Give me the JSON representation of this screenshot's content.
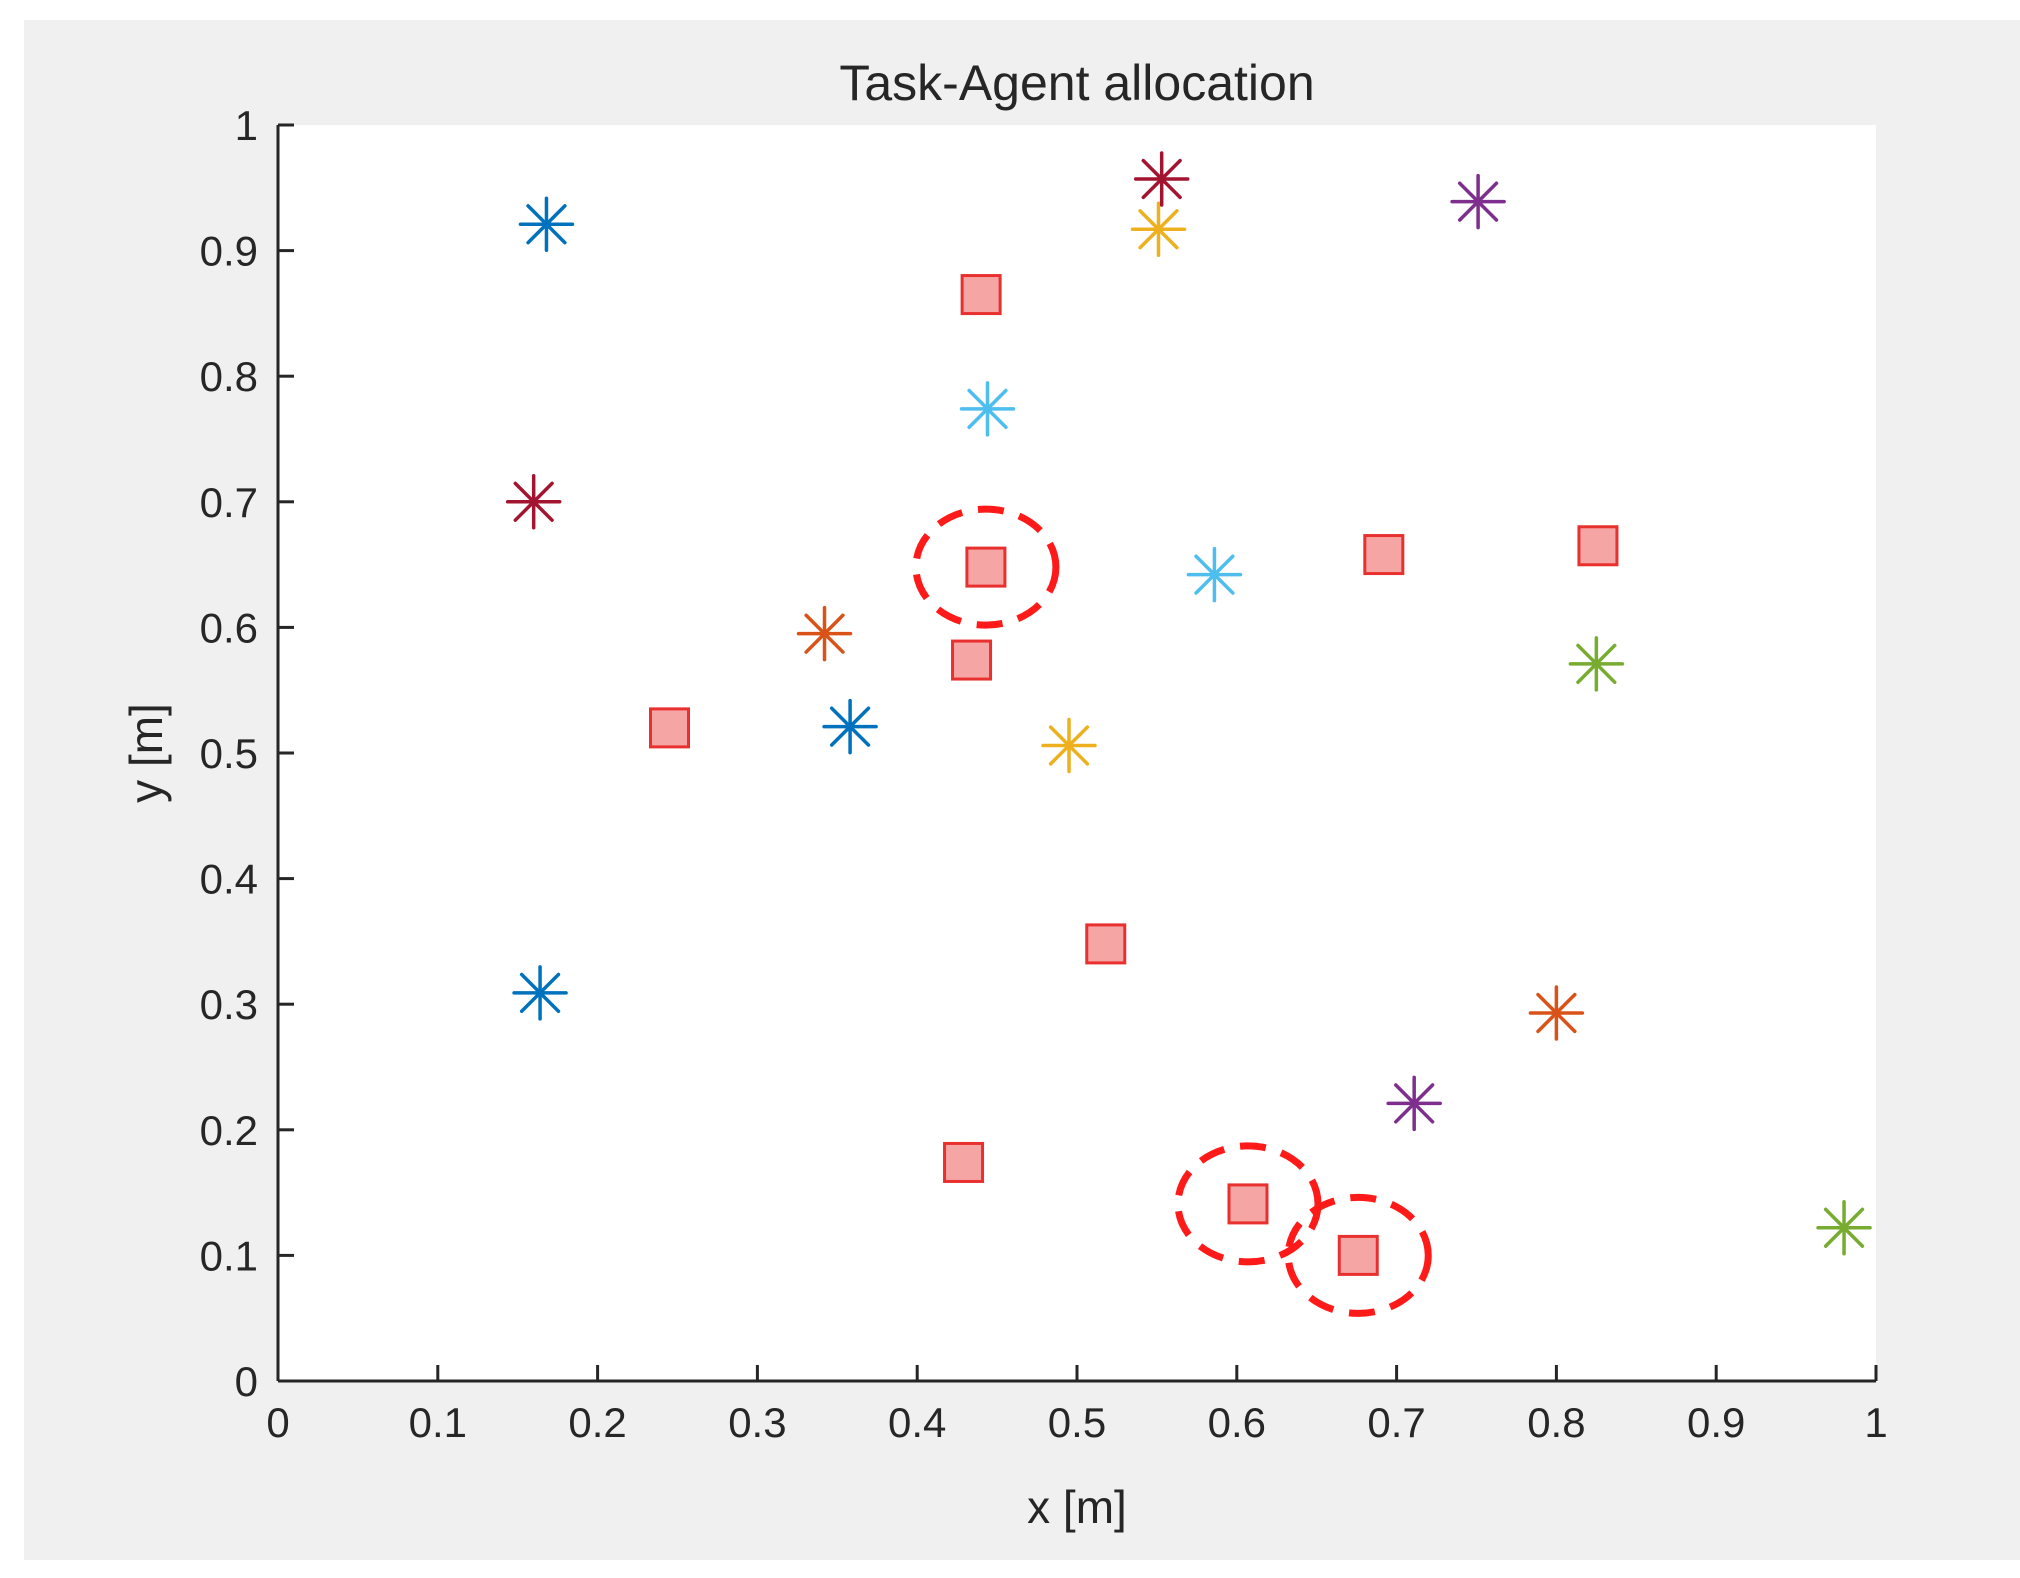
{
  "chart_data": {
    "type": "scatter",
    "title": "Task-Agent allocation",
    "xlabel": "x [m]",
    "ylabel": "y [m]",
    "xlim": [
      0,
      1
    ],
    "ylim": [
      0,
      1
    ],
    "xticks": [
      "0",
      "0.1",
      "0.2",
      "0.3",
      "0.4",
      "0.5",
      "0.6",
      "0.7",
      "0.8",
      "0.9",
      "1"
    ],
    "yticks": [
      "0",
      "0.1",
      "0.2",
      "0.3",
      "0.4",
      "0.5",
      "0.6",
      "0.7",
      "0.8",
      "0.9",
      "1"
    ],
    "grid": false,
    "colors": {
      "task_face": "#f6a5a5",
      "task_edge": "#e8312f",
      "highlight_circle": "#ff1a1a",
      "axes_bg": "#ffffff",
      "figure_bg": "#f0f0f0",
      "text": "#262626"
    },
    "tasks": {
      "marker": "square",
      "points": [
        {
          "x": 0.44,
          "y": 0.865
        },
        {
          "x": 0.443,
          "y": 0.648
        },
        {
          "x": 0.434,
          "y": 0.574
        },
        {
          "x": 0.245,
          "y": 0.52
        },
        {
          "x": 0.692,
          "y": 0.658
        },
        {
          "x": 0.826,
          "y": 0.665
        },
        {
          "x": 0.518,
          "y": 0.348
        },
        {
          "x": 0.429,
          "y": 0.174
        },
        {
          "x": 0.607,
          "y": 0.141
        },
        {
          "x": 0.676,
          "y": 0.1
        }
      ]
    },
    "highlighted_tasks": [
      {
        "x": 0.443,
        "y": 0.648
      },
      {
        "x": 0.607,
        "y": 0.141
      },
      {
        "x": 0.676,
        "y": 0.1
      }
    ],
    "agent_groups": [
      {
        "color": "#0072bd",
        "points": [
          {
            "x": 0.168,
            "y": 0.921
          },
          {
            "x": 0.358,
            "y": 0.521
          },
          {
            "x": 0.164,
            "y": 0.309
          }
        ]
      },
      {
        "color": "#d95319",
        "points": [
          {
            "x": 0.342,
            "y": 0.595
          },
          {
            "x": 0.8,
            "y": 0.293
          }
        ]
      },
      {
        "color": "#edb120",
        "points": [
          {
            "x": 0.551,
            "y": 0.917
          },
          {
            "x": 0.495,
            "y": 0.506
          }
        ]
      },
      {
        "color": "#7e2f8e",
        "points": [
          {
            "x": 0.751,
            "y": 0.939
          },
          {
            "x": 0.711,
            "y": 0.221
          }
        ]
      },
      {
        "color": "#77ac30",
        "points": [
          {
            "x": 0.825,
            "y": 0.571
          },
          {
            "x": 0.98,
            "y": 0.122
          }
        ]
      },
      {
        "color": "#4dbeee",
        "points": [
          {
            "x": 0.444,
            "y": 0.774
          },
          {
            "x": 0.586,
            "y": 0.642
          }
        ]
      },
      {
        "color": "#a2142f",
        "points": [
          {
            "x": 0.553,
            "y": 0.957
          },
          {
            "x": 0.16,
            "y": 0.7
          }
        ]
      }
    ]
  }
}
